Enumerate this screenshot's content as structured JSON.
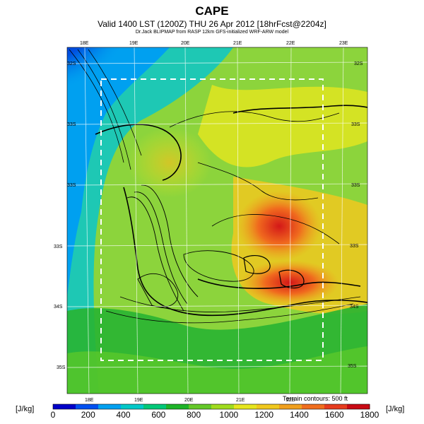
{
  "header": {
    "title": "CAPE",
    "subtitle": "Valid 1400 LST (1200Z) THU 26 Apr 2012 [18hrFcst@2204z]",
    "model_line": "Dr.Jack BLIPMAP from RASP 12km GFS-initialized WRF-ARW model"
  },
  "map": {
    "lon_labels_top": [
      "18E",
      "19E",
      "20E",
      "21E",
      "22E",
      "23E"
    ],
    "lon_labels_bottom": [
      "18E",
      "19E",
      "20E",
      "21E",
      "22E"
    ],
    "lat_labels_left": [
      "32S",
      "33S",
      "33S",
      "33S",
      "34S",
      "35S"
    ],
    "lat_labels_right": [
      "32S",
      "33S",
      "33S",
      "33S",
      "34S",
      "35S"
    ],
    "terrain_note": "Terrain contours: 500 ft"
  },
  "colorbar": {
    "unit_left": "[J/kg]",
    "unit_right": "[J/kg]",
    "tick_labels": [
      "0",
      "200",
      "400",
      "600",
      "800",
      "1000",
      "1200",
      "1400",
      "1600",
      "1800"
    ],
    "colors": [
      "#0000c8",
      "#0050f0",
      "#00a0f0",
      "#00c8c8",
      "#00c878",
      "#1eb428",
      "#64c828",
      "#a0dc1e",
      "#e6e61e",
      "#f0c81e",
      "#f0a01e",
      "#f06e1e",
      "#e63c1e",
      "#c80a14"
    ]
  },
  "colors": {
    "sea_cold": "#0a2ad8",
    "land_mid": "#3cc34a",
    "land_warm": "#e8dc1e",
    "hot": "#e03a1a"
  }
}
